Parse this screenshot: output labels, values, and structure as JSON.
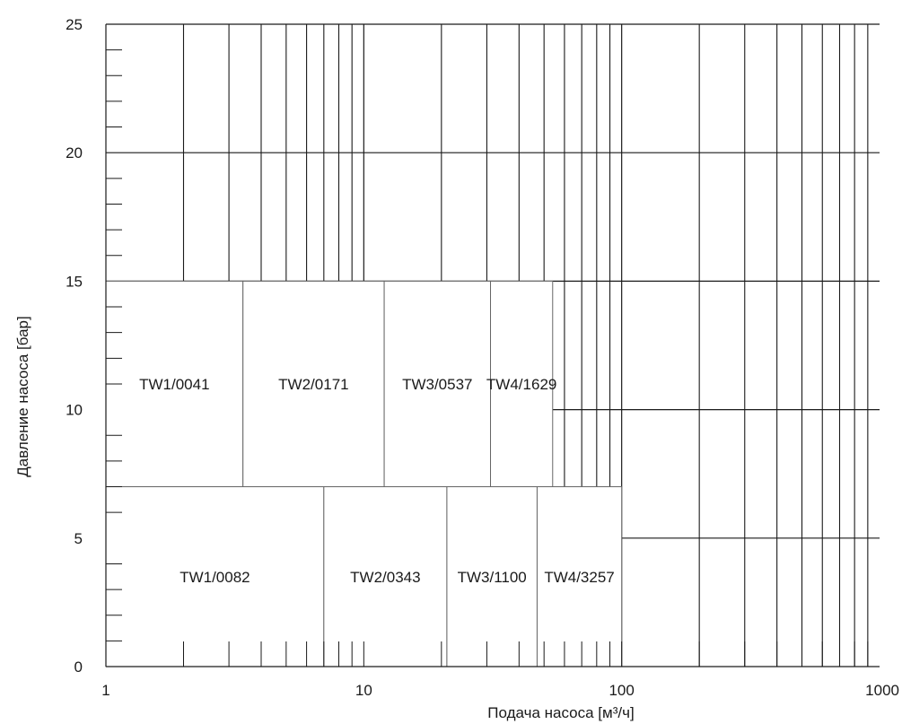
{
  "chart_data": {
    "type": "area",
    "x_scale": "log",
    "xlim": [
      1,
      1000
    ],
    "ylim": [
      0,
      25
    ],
    "x_ticks": [
      1,
      10,
      100,
      1000
    ],
    "x_tick_labels": [
      "1",
      "10",
      "100",
      "1000"
    ],
    "y_ticks": [
      0,
      5,
      10,
      15,
      20,
      25
    ],
    "y_tick_labels": [
      "0",
      "5",
      "10",
      "15",
      "20",
      "25"
    ],
    "xlabel": "Подача насоса   [м³/ч]",
    "ylabel": "Давление насоса [бар]",
    "grid": true,
    "regions": [
      {
        "name": "TW1/0041",
        "x": [
          1,
          3.4
        ],
        "y": [
          7,
          15
        ]
      },
      {
        "name": "TW2/0171",
        "x": [
          3.4,
          12
        ],
        "y": [
          7,
          15
        ]
      },
      {
        "name": "TW3/0537",
        "x": [
          12,
          31
        ],
        "y": [
          7,
          15
        ]
      },
      {
        "name": "TW4/1629",
        "x": [
          31,
          54
        ],
        "y": [
          7,
          15
        ]
      },
      {
        "name": "TW1/0082",
        "x": [
          1,
          7
        ],
        "y": [
          0,
          7
        ]
      },
      {
        "name": "TW2/0343",
        "x": [
          7,
          21
        ],
        "y": [
          0,
          7
        ]
      },
      {
        "name": "TW3/1100",
        "x": [
          21,
          47
        ],
        "y": [
          0,
          7
        ]
      },
      {
        "name": "TW4/3257",
        "x": [
          47,
          100
        ],
        "y": [
          0,
          7
        ]
      }
    ]
  },
  "colors": {
    "grid": "#1a1a1a",
    "region_fill": "#ffffff",
    "region_border": "#666666",
    "text": "#1a1a1a"
  }
}
